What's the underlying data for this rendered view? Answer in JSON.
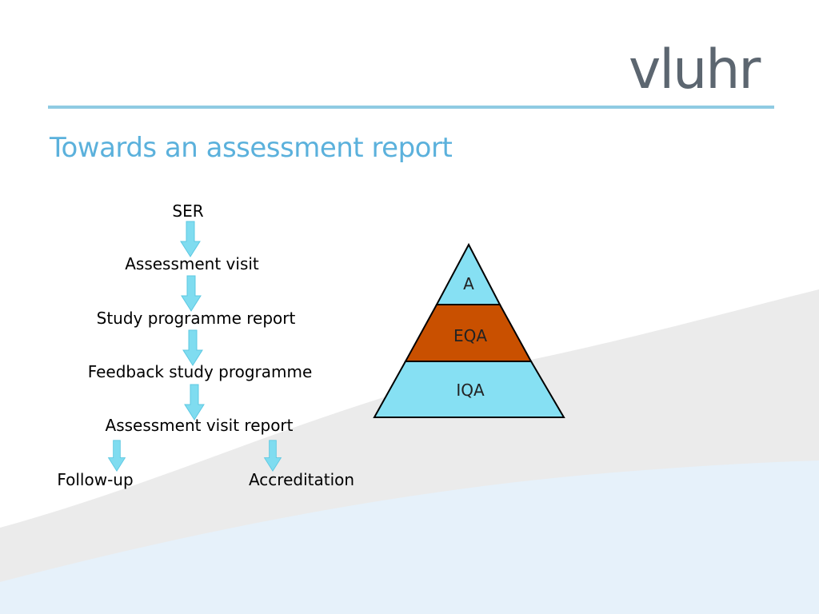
{
  "slide": {
    "title": "Towards an assessment report",
    "logo_text": "vluhr"
  },
  "flow": {
    "steps": {
      "ser": "SER",
      "visit": "Assessment visit",
      "study_report": "Study programme report",
      "feedback": "Feedback study programme",
      "visit_report": "Assessment visit report",
      "follow_up": "Follow-up",
      "accreditation": "Accreditation"
    }
  },
  "pyramid": {
    "levels": {
      "top": "A",
      "middle": "EQA",
      "bottom": "IQA"
    }
  },
  "colors": {
    "title": "#5bb1dc",
    "rule": "#8fcbe3",
    "arrow": "#7fdcf0",
    "pyramid_light": "#86e0f3",
    "pyramid_middle": "#c95000",
    "wave_grey": "#ebebeb",
    "wave_blue": "#e6f1fa"
  }
}
